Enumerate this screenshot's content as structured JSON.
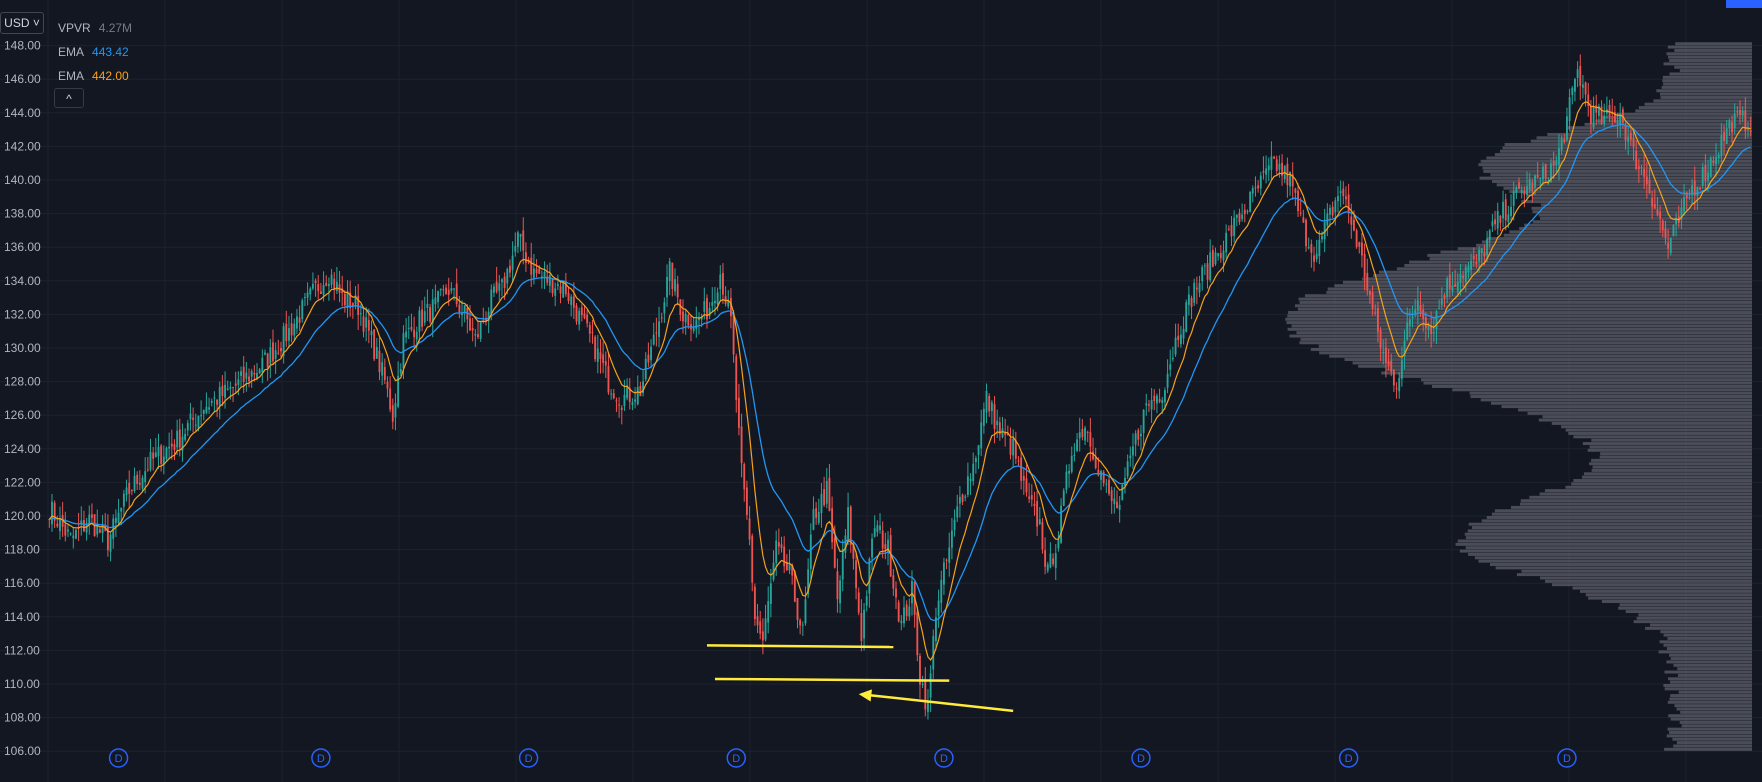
{
  "currency_selector": {
    "label": "USD"
  },
  "legend": {
    "vpvr": {
      "name": "VPVR",
      "value": "4.27M",
      "color": "#787b86"
    },
    "ema_blue": {
      "name": "EMA",
      "value": "443.42",
      "color": "#2196f3"
    },
    "ema_orange": {
      "name": "EMA",
      "value": "442.00",
      "color": "#f7a21b"
    }
  },
  "collapse_button": {
    "label": "^"
  },
  "dividend_marker_label": "D",
  "colors": {
    "background": "#131722",
    "grid": "#1e222d",
    "up": "#26a69a",
    "down": "#ef5350",
    "ema_short": "#f7a21b",
    "ema_long": "#2196f3",
    "volume_profile": "#5d606b",
    "annotation": "#ffeb3b",
    "dividend": "#2962ff"
  },
  "chart_data": {
    "type": "candlestick",
    "y_axis": {
      "min": 105,
      "max": 150,
      "ticks": [
        "106.00",
        "108.00",
        "110.00",
        "112.00",
        "114.00",
        "116.00",
        "118.00",
        "120.00",
        "122.00",
        "124.00",
        "126.00",
        "128.00",
        "130.00",
        "132.00",
        "134.00",
        "136.00",
        "138.00",
        "140.00",
        "142.00",
        "144.00",
        "146.00",
        "148.00"
      ]
    },
    "grid": true,
    "price_path_anchors": [
      [
        0,
        120.5
      ],
      [
        8,
        118.6
      ],
      [
        15,
        119.8
      ],
      [
        22,
        118.5
      ],
      [
        30,
        121.5
      ],
      [
        38,
        123.2
      ],
      [
        48,
        124.5
      ],
      [
        58,
        126.5
      ],
      [
        68,
        127.5
      ],
      [
        80,
        129.0
      ],
      [
        90,
        131.0
      ],
      [
        100,
        133.5
      ],
      [
        105,
        134.5
      ],
      [
        110,
        133.0
      ],
      [
        116,
        132.5
      ],
      [
        122,
        130.0
      ],
      [
        126,
        128.0
      ],
      [
        129,
        126.0
      ],
      [
        133,
        130.5
      ],
      [
        138,
        131.5
      ],
      [
        145,
        132.5
      ],
      [
        150,
        133.5
      ],
      [
        156,
        132.0
      ],
      [
        160,
        130.5
      ],
      [
        166,
        132.8
      ],
      [
        170,
        133.5
      ],
      [
        176,
        136.5
      ],
      [
        182,
        134.5
      ],
      [
        188,
        134.0
      ],
      [
        194,
        133.5
      ],
      [
        200,
        131.5
      ],
      [
        205,
        130.0
      ],
      [
        210,
        128.0
      ],
      [
        215,
        127.0
      ],
      [
        222,
        127.5
      ],
      [
        228,
        131.0
      ],
      [
        233,
        134.5
      ],
      [
        238,
        132.0
      ],
      [
        243,
        131.5
      ],
      [
        248,
        132.5
      ],
      [
        252,
        134.5
      ],
      [
        256,
        131.5
      ],
      [
        258,
        127.0
      ],
      [
        260,
        122.5
      ],
      [
        263,
        118.5
      ],
      [
        265,
        114.0
      ],
      [
        268,
        112.5
      ],
      [
        273,
        118.0
      ],
      [
        278,
        116.5
      ],
      [
        283,
        113.0
      ],
      [
        287,
        120.0
      ],
      [
        292,
        121.5
      ],
      [
        296,
        115.0
      ],
      [
        300,
        120.0
      ],
      [
        305,
        113.0
      ],
      [
        310,
        119.5
      ],
      [
        315,
        118.0
      ],
      [
        320,
        113.5
      ],
      [
        324,
        115.5
      ],
      [
        327,
        110.5
      ],
      [
        330,
        108.5
      ],
      [
        333,
        114.5
      ],
      [
        338,
        118.0
      ],
      [
        342,
        121.0
      ],
      [
        347,
        123.0
      ],
      [
        352,
        127.0
      ],
      [
        357,
        125.0
      ],
      [
        362,
        124.0
      ],
      [
        367,
        121.0
      ],
      [
        372,
        119.5
      ],
      [
        375,
        116.5
      ],
      [
        379,
        119.0
      ],
      [
        384,
        124.0
      ],
      [
        389,
        125.5
      ],
      [
        394,
        123.0
      ],
      [
        398,
        121.0
      ],
      [
        402,
        120.5
      ],
      [
        407,
        124.0
      ],
      [
        412,
        126.5
      ],
      [
        418,
        127.5
      ],
      [
        424,
        131.0
      ],
      [
        430,
        133.5
      ],
      [
        436,
        135.0
      ],
      [
        442,
        136.5
      ],
      [
        448,
        138.0
      ],
      [
        454,
        139.5
      ],
      [
        460,
        141.0
      ],
      [
        466,
        140.0
      ],
      [
        471,
        137.0
      ],
      [
        476,
        135.5
      ],
      [
        480,
        137.5
      ],
      [
        485,
        139.5
      ],
      [
        490,
        137.0
      ],
      [
        494,
        134.5
      ],
      [
        498,
        131.5
      ],
      [
        502,
        129.0
      ],
      [
        506,
        128.0
      ],
      [
        510,
        131.0
      ],
      [
        514,
        133.0
      ],
      [
        519,
        131.0
      ],
      [
        524,
        133.5
      ],
      [
        530,
        134.5
      ],
      [
        536,
        135.0
      ],
      [
        542,
        137.0
      ],
      [
        548,
        138.5
      ],
      [
        554,
        139.5
      ],
      [
        560,
        140.0
      ],
      [
        566,
        141.0
      ],
      [
        570,
        143.5
      ],
      [
        574,
        146.5
      ],
      [
        579,
        144.0
      ],
      [
        584,
        143.5
      ],
      [
        590,
        144.0
      ],
      [
        595,
        141.5
      ],
      [
        600,
        140.0
      ],
      [
        604,
        138.0
      ],
      [
        608,
        136.0
      ],
      [
        612,
        137.5
      ],
      [
        617,
        139.5
      ],
      [
        622,
        140.5
      ],
      [
        627,
        142.0
      ],
      [
        632,
        143.5
      ]
    ],
    "annotations": {
      "support_line_upper": {
        "from": [
          247,
          112.3
        ],
        "to": [
          317,
          112.2
        ]
      },
      "support_line_lower": {
        "from": [
          250,
          110.3
        ],
        "to": [
          338,
          110.2
        ]
      },
      "arrow_tail": [
        362,
        108.4
      ],
      "arrow_head": [
        304,
        109.4
      ]
    },
    "dividend_marker_bars": [
      26,
      102,
      180,
      258,
      336,
      410,
      488,
      570
    ]
  }
}
